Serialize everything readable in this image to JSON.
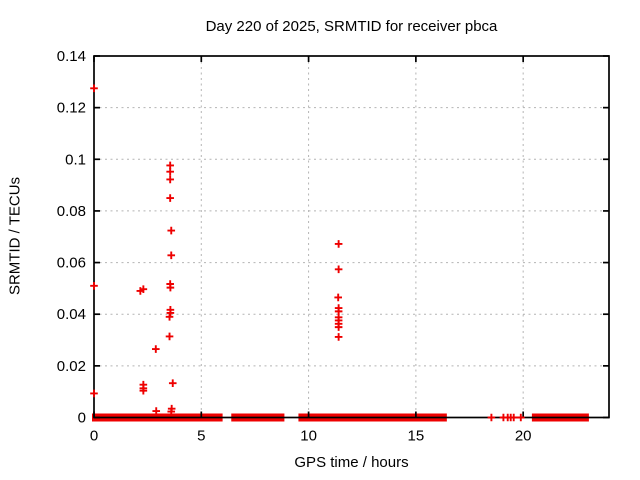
{
  "page": {
    "background": "#ffffff"
  },
  "chart_data": {
    "type": "scatter",
    "title": "Day 220 of 2025, SRMTID for receiver pbca",
    "xlabel": "GPS time / hours",
    "ylabel": "SRMTID / TECUs",
    "xlim": [
      0,
      24
    ],
    "ylim": [
      0,
      0.14
    ],
    "x_ticks": [
      0,
      5,
      10,
      15,
      20
    ],
    "x_tick_labels": [
      "0",
      "5",
      "10",
      "15",
      "20"
    ],
    "y_ticks": [
      0,
      0.02,
      0.04,
      0.06,
      0.08,
      0.1,
      0.12,
      0.14
    ],
    "y_tick_labels": [
      "0",
      "0.02",
      "0.04",
      "0.06",
      "0.08",
      "0.1",
      "0.12",
      "0.14"
    ],
    "grid": true,
    "legend": false,
    "marker": "plus",
    "colors": {
      "series": "#ee0000",
      "grid": "#b4b4b4",
      "axis": "#000000",
      "text": "#000000"
    },
    "series": [
      {
        "name": "SRMTID",
        "points": [
          [
            0.0,
            0.1275
          ],
          [
            0.0,
            0.051
          ],
          [
            0.0,
            0.0093
          ],
          [
            2.16,
            0.049
          ],
          [
            2.3,
            0.0497
          ],
          [
            2.3,
            0.0127
          ],
          [
            2.3,
            0.0113
          ],
          [
            2.3,
            0.0104
          ],
          [
            2.88,
            0.0265
          ],
          [
            2.9,
            0.0025
          ],
          [
            3.55,
            0.0976
          ],
          [
            3.55,
            0.0952
          ],
          [
            3.55,
            0.0922
          ],
          [
            3.55,
            0.085
          ],
          [
            3.6,
            0.0724
          ],
          [
            3.6,
            0.0628
          ],
          [
            3.55,
            0.0517
          ],
          [
            3.56,
            0.0503
          ],
          [
            3.56,
            0.0417
          ],
          [
            3.56,
            0.0405
          ],
          [
            3.52,
            0.039
          ],
          [
            3.52,
            0.0314
          ],
          [
            3.67,
            0.0133
          ],
          [
            3.62,
            0.0034
          ],
          [
            3.6,
            0.0023
          ],
          [
            11.4,
            0.0672
          ],
          [
            11.4,
            0.0574
          ],
          [
            11.38,
            0.0465
          ],
          [
            11.4,
            0.0424
          ],
          [
            11.4,
            0.0411
          ],
          [
            11.4,
            0.0388
          ],
          [
            11.4,
            0.0376
          ],
          [
            11.4,
            0.0363
          ],
          [
            11.4,
            0.035
          ],
          [
            11.4,
            0.0312
          ]
        ]
      }
    ],
    "zero_line_segments": [
      [
        0.0,
        2.24
      ],
      [
        2.39,
        3.48
      ],
      [
        3.59,
        5.9
      ],
      [
        6.49,
        8.78
      ],
      [
        9.62,
        11.33
      ],
      [
        11.45,
        16.35
      ],
      [
        20.5,
        22.97
      ]
    ],
    "zero_isolated_x": [
      18.52,
      19.08,
      19.28,
      19.42,
      19.56,
      19.89
    ]
  }
}
